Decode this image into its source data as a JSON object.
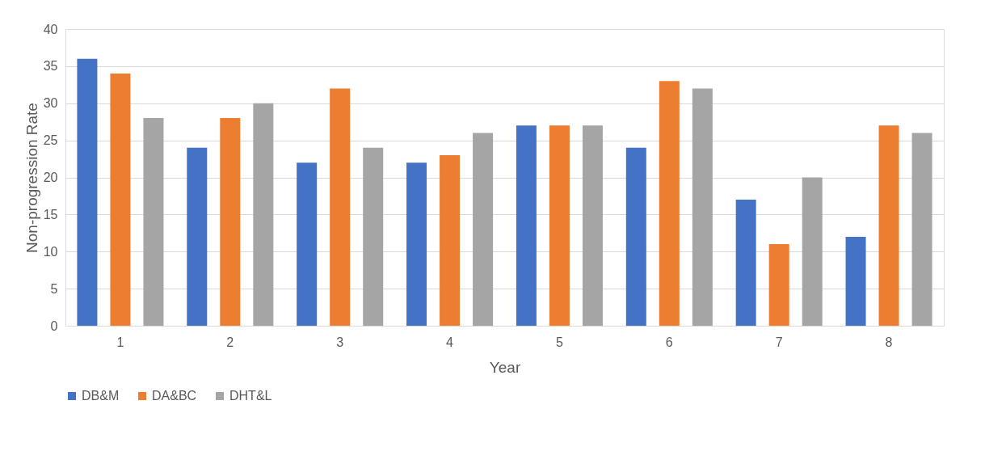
{
  "chart_data": {
    "type": "bar",
    "xlabel": "Year",
    "ylabel": "Non-progression Rate",
    "categories": [
      "1",
      "2",
      "3",
      "4",
      "5",
      "6",
      "7",
      "8"
    ],
    "series": [
      {
        "name": "DB&M",
        "color": "#4472c4",
        "values": [
          36,
          24,
          22,
          22,
          27,
          24,
          17,
          12
        ]
      },
      {
        "name": "DA&BC",
        "color": "#ed7d31",
        "values": [
          34,
          28,
          32,
          23,
          27,
          33,
          11,
          27
        ]
      },
      {
        "name": "DHT&L",
        "color": "#a5a5a5",
        "values": [
          28,
          30,
          24,
          26,
          27,
          32,
          20,
          26
        ]
      }
    ],
    "ylim": [
      0,
      40
    ],
    "yticks": [
      0,
      5,
      10,
      15,
      20,
      25,
      30,
      35,
      40
    ],
    "grid": "y",
    "legend": "bottom"
  }
}
